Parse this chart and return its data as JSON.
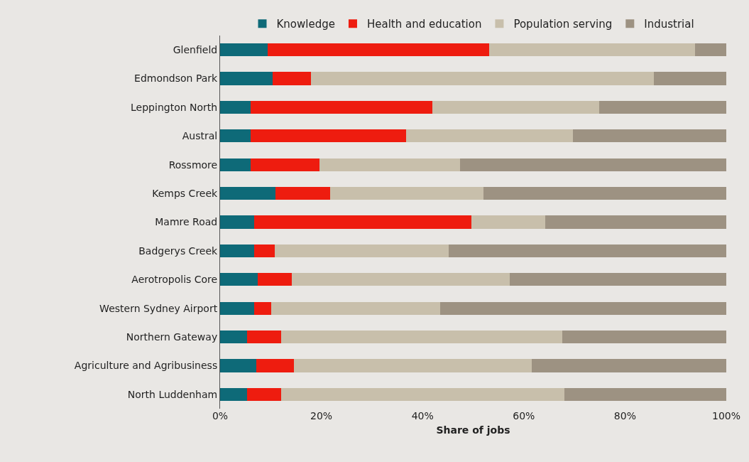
{
  "chart_data": {
    "type": "bar",
    "orientation": "horizontal",
    "stacked": true,
    "xlabel": "Share of jobs",
    "categories": [
      "Glenfield",
      "Edmondson Park",
      "Leppington North",
      "Austral",
      "Rossmore",
      "Kemps Creek",
      "Mamre Road",
      "Badgerys Creek",
      "Aerotropolis Core",
      "Western Sydney Airport",
      "Northern Gateway",
      "Agriculture and Agribusiness",
      "North Luddenham"
    ],
    "series": [
      {
        "name": "Knowledge",
        "color": "#0e6a78",
        "values": [
          9.4,
          10.4,
          6.1,
          6.1,
          6.1,
          10.9,
          6.7,
          6.7,
          7.4,
          6.7,
          5.3,
          7.2,
          5.3
        ]
      },
      {
        "name": "Health and education",
        "color": "#ee1c0f",
        "values": [
          43.7,
          7.6,
          35.8,
          30.7,
          13.5,
          10.8,
          43.0,
          4.1,
          6.7,
          3.4,
          6.8,
          7.4,
          6.8
        ]
      },
      {
        "name": "Population serving",
        "color": "#c8bfab",
        "values": [
          40.7,
          67.7,
          33.0,
          32.9,
          27.8,
          30.3,
          14.5,
          34.4,
          43.1,
          33.4,
          55.5,
          46.9,
          55.9
        ]
      },
      {
        "name": "Industrial",
        "color": "#9d9282",
        "values": [
          6.2,
          14.3,
          25.1,
          30.3,
          52.6,
          48.0,
          35.8,
          54.8,
          42.8,
          56.5,
          32.4,
          38.5,
          32.0
        ]
      }
    ],
    "xlim": [
      0,
      100
    ],
    "xticks": [
      {
        "value": 0,
        "label": "0%"
      },
      {
        "value": 20,
        "label": "20%"
      },
      {
        "value": 40,
        "label": "40%"
      },
      {
        "value": 60,
        "label": "60%"
      },
      {
        "value": 80,
        "label": "80%"
      },
      {
        "value": 100,
        "label": "100%"
      }
    ],
    "grid": false,
    "legend": "top"
  }
}
